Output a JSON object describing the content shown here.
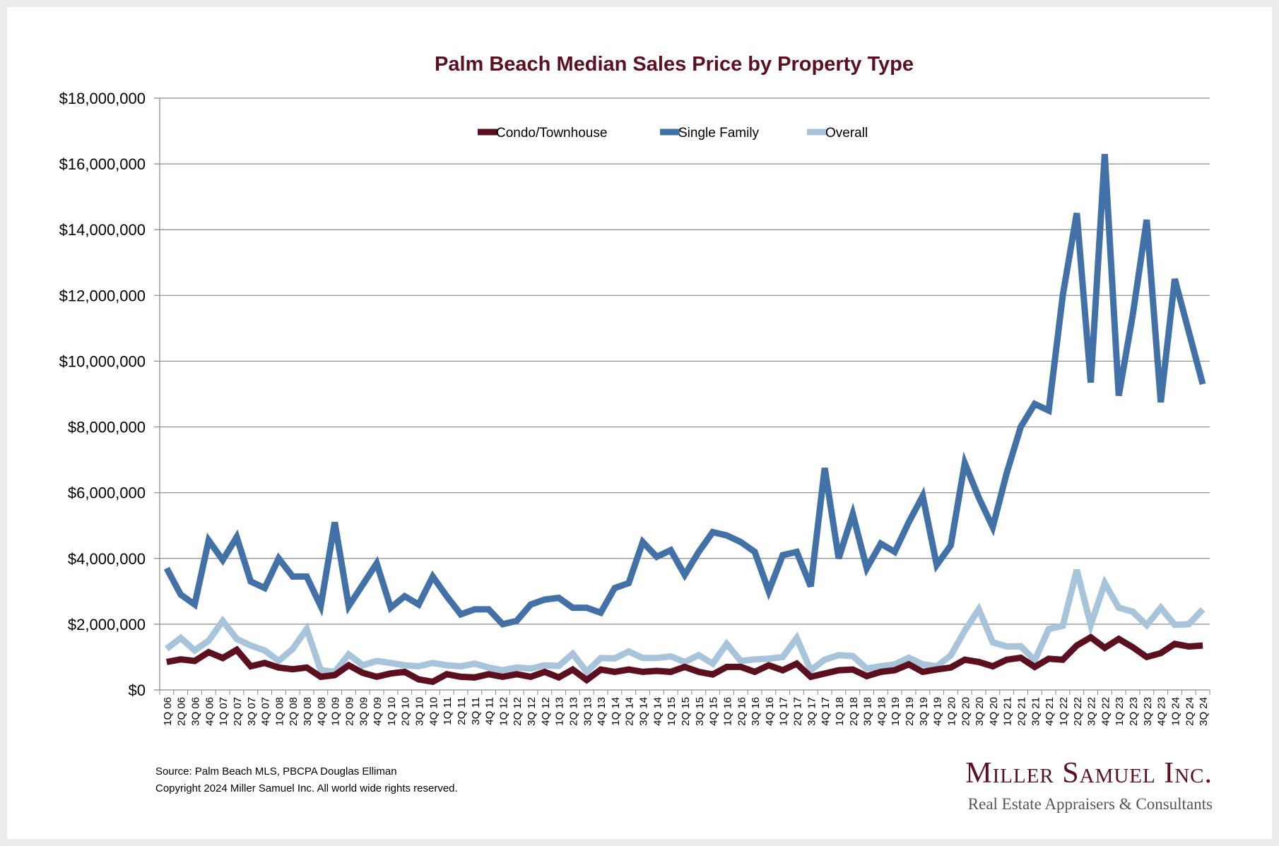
{
  "chart_data": {
    "type": "line",
    "title": "Palm Beach Median Sales Price by Property Type",
    "xlabel": "",
    "ylabel": "",
    "ylim": [
      0,
      18000000
    ],
    "yticks": [
      0,
      2000000,
      4000000,
      6000000,
      8000000,
      10000000,
      12000000,
      14000000,
      16000000,
      18000000
    ],
    "ytick_labels": [
      "$0",
      "$2,000,000",
      "$4,000,000",
      "$6,000,000",
      "$8,000,000",
      "$10,000,000",
      "$12,000,000",
      "$14,000,000",
      "$16,000,000",
      "$18,000,000"
    ],
    "grid": true,
    "legend_position": "top-center",
    "categories": [
      "1Q 06",
      "2Q 06",
      "3Q 06",
      "4Q 06",
      "1Q 07",
      "2Q 07",
      "3Q 07",
      "4Q 07",
      "1Q 08",
      "2Q 08",
      "3Q 08",
      "4Q 08",
      "1Q 09",
      "2Q 09",
      "3Q 09",
      "4Q 09",
      "1Q 10",
      "2Q 10",
      "3Q 10",
      "4Q 10",
      "1Q 11",
      "2Q 11",
      "3Q 11",
      "4Q 11",
      "1Q 12",
      "2Q 12",
      "3Q 12",
      "4Q 12",
      "1Q 13",
      "2Q 13",
      "3Q 13",
      "4Q 13",
      "1Q 14",
      "2Q 14",
      "3Q 14",
      "4Q 14",
      "1Q 15",
      "2Q 15",
      "3Q 15",
      "4Q 15",
      "1Q 16",
      "2Q 16",
      "3Q 16",
      "4Q 16",
      "1Q 17",
      "2Q 17",
      "3Q 17",
      "4Q 17",
      "1Q 18",
      "2Q 18",
      "3Q 18",
      "4Q 18",
      "1Q 19",
      "2Q 19",
      "3Q 19",
      "4Q 19",
      "1Q 20",
      "2Q 20",
      "3Q 20",
      "4Q 20",
      "1Q 21",
      "2Q 21",
      "3Q 21",
      "4Q 21",
      "1Q 22",
      "2Q 22",
      "3Q 22",
      "4Q 22",
      "1Q 23",
      "2Q 23",
      "3Q 23",
      "4Q 23",
      "1Q 24",
      "2Q 24",
      "3Q 24"
    ],
    "series": [
      {
        "name": "Condo/Townhouse",
        "color": "#5c0f1f",
        "values": [
          850000,
          930000,
          880000,
          1150000,
          970000,
          1220000,
          720000,
          820000,
          680000,
          630000,
          680000,
          400000,
          450000,
          750000,
          520000,
          400000,
          500000,
          550000,
          320000,
          250000,
          480000,
          400000,
          380000,
          480000,
          400000,
          480000,
          400000,
          550000,
          380000,
          620000,
          300000,
          620000,
          550000,
          620000,
          550000,
          580000,
          550000,
          700000,
          550000,
          470000,
          700000,
          700000,
          550000,
          750000,
          600000,
          800000,
          400000,
          500000,
          600000,
          620000,
          420000,
          550000,
          600000,
          780000,
          550000,
          620000,
          680000,
          920000,
          850000,
          720000,
          920000,
          980000,
          700000,
          950000,
          920000,
          1350000,
          1600000,
          1280000,
          1550000,
          1300000,
          1000000,
          1120000,
          1400000,
          1320000,
          1350000
        ]
      },
      {
        "name": "Single Family",
        "color": "#4171a6",
        "values": [
          3700000,
          2900000,
          2600000,
          4550000,
          3950000,
          4650000,
          3300000,
          3100000,
          4000000,
          3450000,
          3450000,
          2550000,
          5100000,
          2550000,
          3200000,
          3850000,
          2500000,
          2850000,
          2600000,
          3450000,
          2850000,
          2300000,
          2450000,
          2450000,
          2000000,
          2100000,
          2600000,
          2750000,
          2800000,
          2500000,
          2500000,
          2350000,
          3100000,
          3250000,
          4500000,
          4050000,
          4250000,
          3500000,
          4200000,
          4800000,
          4700000,
          4500000,
          4200000,
          3000000,
          4100000,
          4200000,
          3150000,
          6750000,
          4000000,
          5350000,
          3700000,
          4450000,
          4200000,
          5100000,
          5900000,
          3800000,
          4400000,
          6900000,
          5850000,
          4950000,
          6600000,
          8000000,
          8700000,
          8500000,
          12000000,
          14500000,
          9350000,
          16300000,
          8950000,
          11400000,
          14300000,
          8750000,
          12500000,
          10900000,
          9300000
        ]
      },
      {
        "name": "Overall",
        "color": "#a8c4da",
        "values": [
          1250000,
          1580000,
          1200000,
          1500000,
          2100000,
          1550000,
          1350000,
          1200000,
          880000,
          1250000,
          1850000,
          600000,
          550000,
          1080000,
          750000,
          880000,
          820000,
          750000,
          720000,
          820000,
          750000,
          720000,
          800000,
          680000,
          600000,
          680000,
          650000,
          750000,
          730000,
          1100000,
          550000,
          970000,
          960000,
          1170000,
          970000,
          970000,
          1020000,
          850000,
          1060000,
          800000,
          1400000,
          880000,
          930000,
          950000,
          1000000,
          1580000,
          600000,
          920000,
          1060000,
          1030000,
          650000,
          720000,
          780000,
          980000,
          780000,
          720000,
          1050000,
          1800000,
          2450000,
          1450000,
          1320000,
          1330000,
          900000,
          1850000,
          1950000,
          3650000,
          1980000,
          3250000,
          2500000,
          2380000,
          1970000,
          2500000,
          1980000,
          2000000,
          2450000
        ]
      }
    ]
  },
  "footer": {
    "source": "Source: Palm Beach MLS, PBCPA Douglas Elliman",
    "copyright": "Copyright 2024 Miller Samuel Inc.  All world wide rights reserved."
  },
  "logo": {
    "name": "Miller Samuel Inc.",
    "tagline": "Real Estate Appraisers & Consultants"
  }
}
